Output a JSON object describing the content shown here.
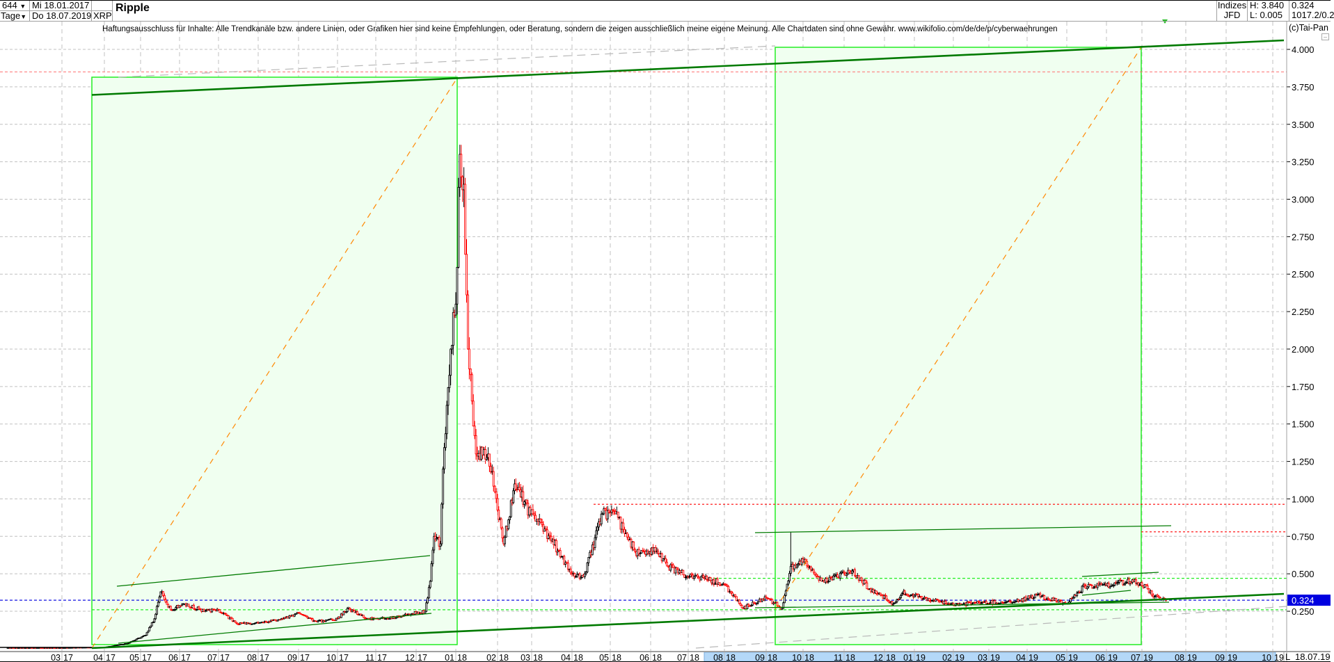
{
  "header": {
    "bars_count": "644",
    "period": "Tage",
    "start_date": "Mi 18.01.2017",
    "end_date": "Do 18.07.2019",
    "symbol": "XRP",
    "title": "Ripple",
    "category": "Indizes",
    "source": "JFD",
    "high": "H: 3.840",
    "low": "L: 0.005",
    "last": "0.324",
    "extra": "1017.2/0.2",
    "disclaimer": "Haftungsausschluss für Inhalte: Alle Trendkanäle bzw. andere Linien, oder Grafiken hier sind keine Empfehlungen, oder Beratung, sondern die zeigen ausschließlich meine eigene Meinung. Alle Chartdaten sind ohne Gewähr.  www.wikifolio.com/de/de/p/cyberwaehrungen",
    "copyright": "(c)Tai-Pan"
  },
  "footer": {
    "log_toggle": "L",
    "date": "18.07.19"
  },
  "colors": {
    "up_candle": "#000000",
    "down_candle": "#ff0000",
    "box_fill": "#f0fff0",
    "box_border": "#22ee22",
    "trend_line": "#007a00",
    "fib_diagonal": "#ff8800",
    "last_price_bg": "#0000e0",
    "time_axis_highlight": "#b4d8f8"
  },
  "chart_data": {
    "type": "candlestick",
    "title": "Ripple",
    "ylim": [
      0,
      4.1
    ],
    "y_ticks": [
      "4.000",
      "3.750",
      "3.500",
      "3.250",
      "3.000",
      "2.750",
      "2.500",
      "2.250",
      "2.000",
      "1.750",
      "1.500",
      "1.250",
      "1.000",
      "0.750",
      "0.500",
      "0.250"
    ],
    "x_ticks": [
      "03 17",
      "04 17",
      "05 17",
      "06 17",
      "07 17",
      "08 17",
      "09 17",
      "10 17",
      "11 17",
      "12 17",
      "01 18",
      "02 18",
      "03 18",
      "04 18",
      "05 18",
      "06 18",
      "07 18",
      "08 18",
      "09 18",
      "10 18",
      "11 18",
      "12 18",
      "01 19",
      "02 19",
      "03 19",
      "04 19",
      "05 19",
      "06 19",
      "07 19",
      "08 19",
      "09 19",
      "10 19"
    ],
    "grid": true,
    "last_price": 0.324,
    "close_approx": [
      [
        "2017-01-18",
        0.006
      ],
      [
        "2017-03-01",
        0.006
      ],
      [
        "2017-03-22",
        0.009
      ],
      [
        "2017-04-01",
        0.01
      ],
      [
        "2017-04-20",
        0.035
      ],
      [
        "2017-05-05",
        0.09
      ],
      [
        "2017-05-12",
        0.2
      ],
      [
        "2017-05-17",
        0.38
      ],
      [
        "2017-05-25",
        0.26
      ],
      [
        "2017-06-05",
        0.3
      ],
      [
        "2017-06-20",
        0.25
      ],
      [
        "2017-07-01",
        0.26
      ],
      [
        "2017-07-15",
        0.17
      ],
      [
        "2017-08-01",
        0.17
      ],
      [
        "2017-08-20",
        0.2
      ],
      [
        "2017-09-01",
        0.24
      ],
      [
        "2017-09-15",
        0.18
      ],
      [
        "2017-10-01",
        0.2
      ],
      [
        "2017-10-10",
        0.27
      ],
      [
        "2017-10-25",
        0.2
      ],
      [
        "2017-11-10",
        0.2
      ],
      [
        "2017-11-25",
        0.23
      ],
      [
        "2017-12-08",
        0.25
      ],
      [
        "2017-12-12",
        0.45
      ],
      [
        "2017-12-15",
        0.75
      ],
      [
        "2017-12-20",
        0.7
      ],
      [
        "2017-12-22",
        1.2
      ],
      [
        "2017-12-28",
        2.0
      ],
      [
        "2018-01-01",
        2.3
      ],
      [
        "2018-01-04",
        3.3
      ],
      [
        "2018-01-07",
        3.1
      ],
      [
        "2018-01-10",
        2.0
      ],
      [
        "2018-01-16",
        1.3
      ],
      [
        "2018-01-25",
        1.3
      ],
      [
        "2018-02-06",
        0.7
      ],
      [
        "2018-02-15",
        1.1
      ],
      [
        "2018-02-28",
        0.9
      ],
      [
        "2018-03-15",
        0.75
      ],
      [
        "2018-04-01",
        0.5
      ],
      [
        "2018-04-10",
        0.48
      ],
      [
        "2018-04-25",
        0.9
      ],
      [
        "2018-05-05",
        0.9
      ],
      [
        "2018-05-20",
        0.65
      ],
      [
        "2018-06-05",
        0.65
      ],
      [
        "2018-06-15",
        0.55
      ],
      [
        "2018-07-01",
        0.48
      ],
      [
        "2018-07-15",
        0.47
      ],
      [
        "2018-08-01",
        0.43
      ],
      [
        "2018-08-15",
        0.27
      ],
      [
        "2018-09-01",
        0.34
      ],
      [
        "2018-09-14",
        0.27
      ],
      [
        "2018-09-21",
        0.55
      ],
      [
        "2018-10-01",
        0.58
      ],
      [
        "2018-10-15",
        0.45
      ],
      [
        "2018-11-07",
        0.52
      ],
      [
        "2018-11-20",
        0.4
      ],
      [
        "2018-12-10",
        0.3
      ],
      [
        "2018-12-20",
        0.37
      ],
      [
        "2019-01-10",
        0.34
      ],
      [
        "2019-02-01",
        0.29
      ],
      [
        "2019-02-25",
        0.31
      ],
      [
        "2019-03-20",
        0.31
      ],
      [
        "2019-04-08",
        0.36
      ],
      [
        "2019-05-01",
        0.3
      ],
      [
        "2019-05-15",
        0.42
      ],
      [
        "2019-06-01",
        0.42
      ],
      [
        "2019-06-25",
        0.46
      ],
      [
        "2019-07-05",
        0.4
      ],
      [
        "2019-07-10",
        0.35
      ],
      [
        "2019-07-18",
        0.324
      ]
    ],
    "horizontal_levels": {
      "red_dotted": [
        3.85,
        0.964,
        0.78
      ],
      "green_dashed": [
        0.47,
        0.26
      ],
      "blue_dashed": [
        0.324
      ]
    }
  }
}
